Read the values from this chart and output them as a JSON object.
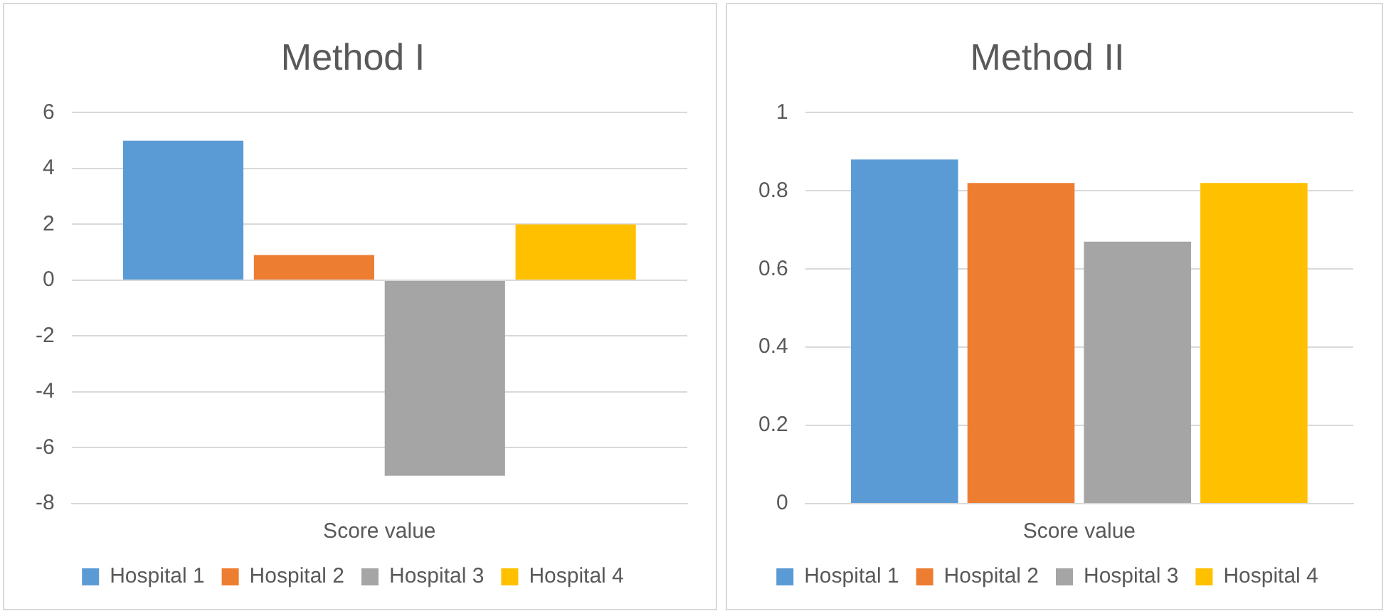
{
  "chart_data": [
    {
      "type": "bar",
      "title": "Method I",
      "categories": [
        "Score value"
      ],
      "series": [
        {
          "name": "Hospital 1",
          "color": "#5b9bd5",
          "values": [
            5
          ]
        },
        {
          "name": "Hospital 2",
          "color": "#ed7d31",
          "values": [
            0.9
          ]
        },
        {
          "name": "Hospital 3",
          "color": "#a5a5a5",
          "values": [
            -7
          ]
        },
        {
          "name": "Hospital 4",
          "color": "#ffc000",
          "values": [
            2
          ]
        }
      ],
      "ylim": [
        -8,
        6
      ],
      "yticks": [
        -8,
        -6,
        -4,
        -2,
        0,
        2,
        4,
        6
      ],
      "grid": "y",
      "legend": "bottom"
    },
    {
      "type": "bar",
      "title": "Method II",
      "categories": [
        "Score value"
      ],
      "series": [
        {
          "name": "Hospital 1",
          "color": "#5b9bd5",
          "values": [
            0.88
          ]
        },
        {
          "name": "Hospital 2",
          "color": "#ed7d31",
          "values": [
            0.82
          ]
        },
        {
          "name": "Hospital 3",
          "color": "#a5a5a5",
          "values": [
            0.67
          ]
        },
        {
          "name": "Hospital 4",
          "color": "#ffc000",
          "values": [
            0.82
          ]
        }
      ],
      "ylim": [
        0,
        1
      ],
      "yticks": [
        0,
        0.2,
        0.4,
        0.6,
        0.8,
        1
      ],
      "grid": "y",
      "legend": "bottom"
    }
  ]
}
